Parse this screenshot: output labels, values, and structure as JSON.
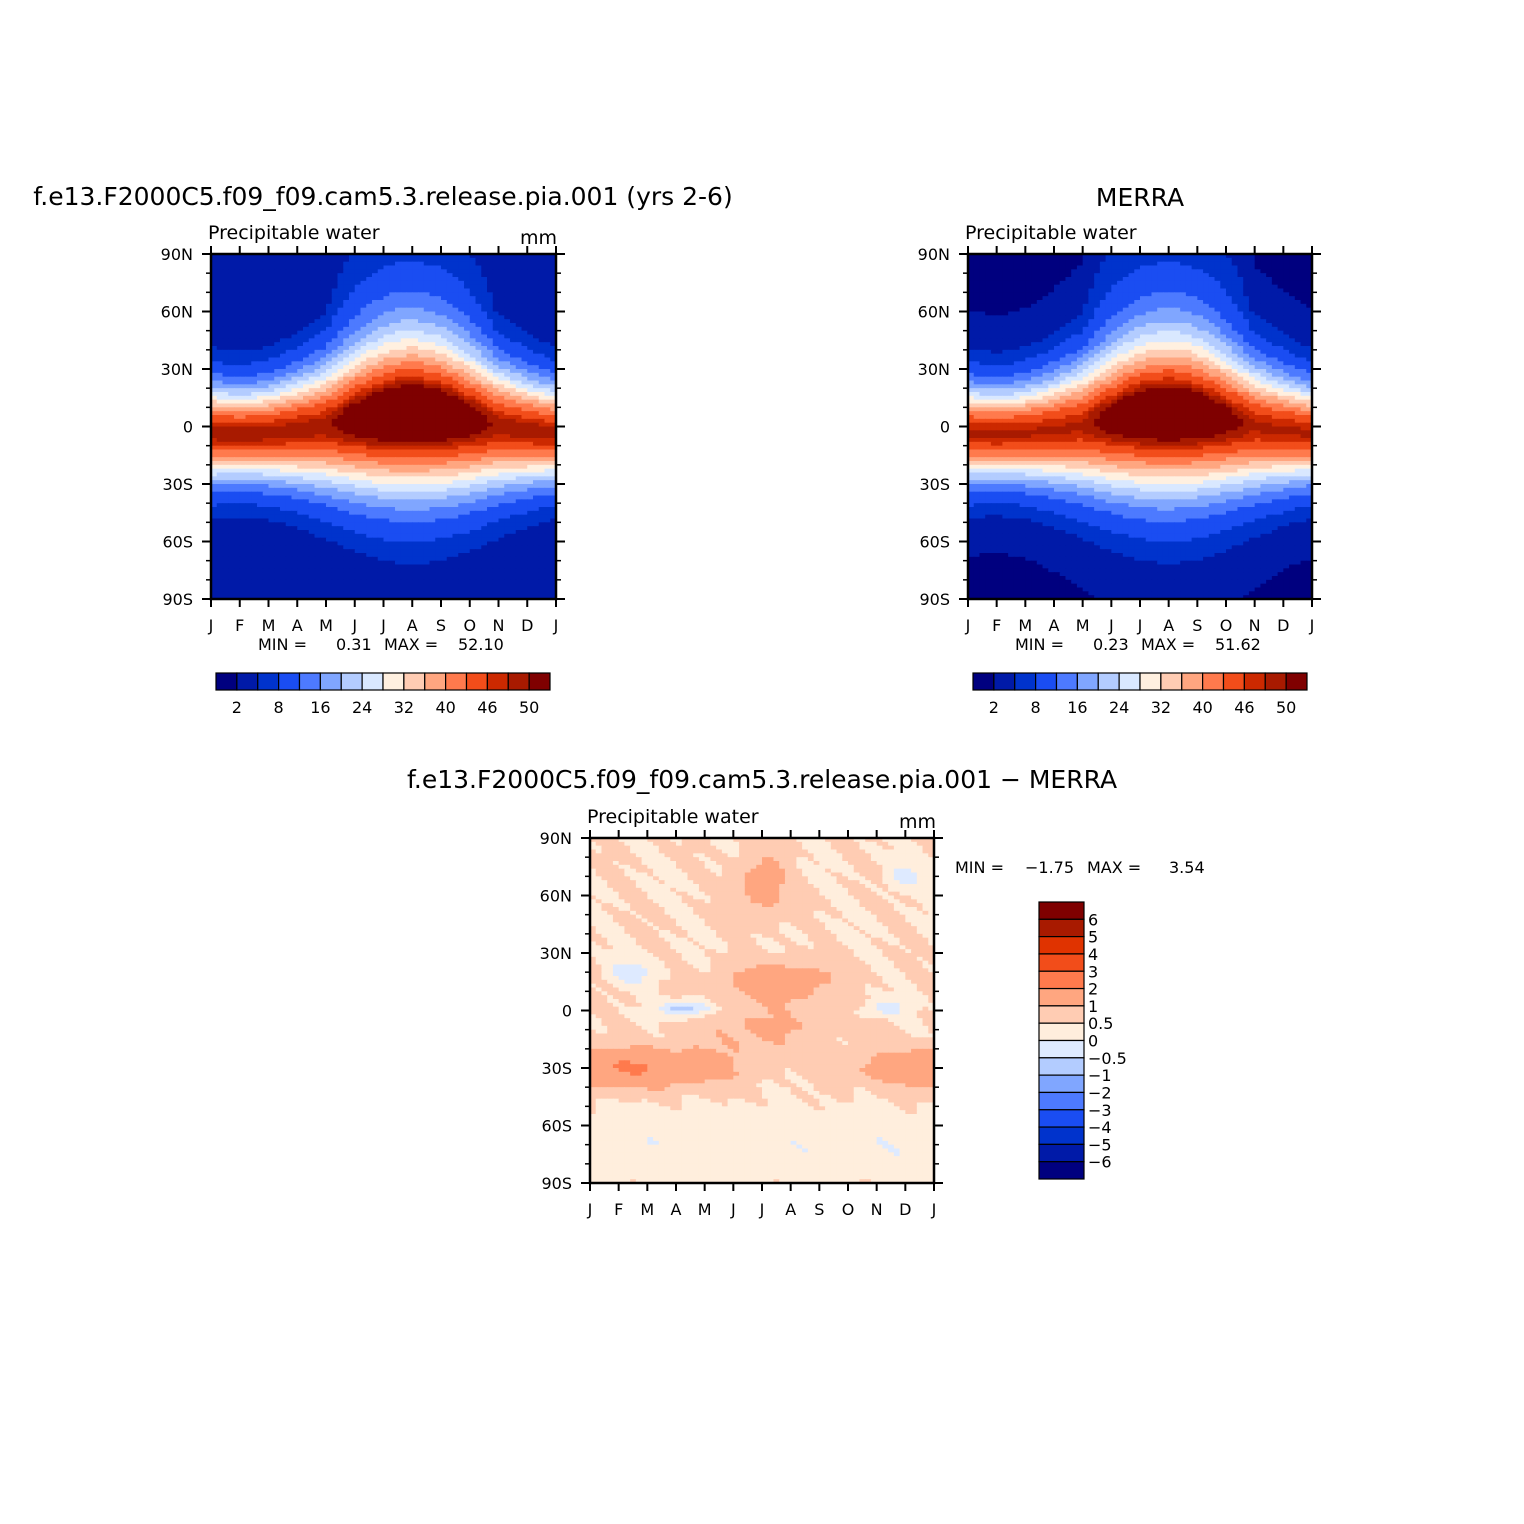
{
  "chart_data": [
    {
      "type": "heatmap",
      "title": "f.e13.F2000C5.f09_f09.cam5.3.release.pia.001 (yrs 2-6)",
      "subtitle": "Precipitable water",
      "units": "mm",
      "x_ticks": [
        "J",
        "F",
        "M",
        "A",
        "M",
        "J",
        "J",
        "A",
        "S",
        "O",
        "N",
        "D",
        "J"
      ],
      "y_ticks": [
        "90N",
        "60N",
        "30N",
        "0",
        "30S",
        "60S",
        "90S"
      ],
      "min_label": "MIN =",
      "min_value": "0.31",
      "max_label": "MAX =",
      "max_value": "52.10",
      "colorbar_ticks": [
        "2",
        "8",
        "16",
        "24",
        "32",
        "40",
        "46",
        "50"
      ]
    },
    {
      "type": "heatmap",
      "title": "MERRA",
      "subtitle": "Precipitable water",
      "units": "",
      "x_ticks": [
        "J",
        "F",
        "M",
        "A",
        "M",
        "J",
        "J",
        "A",
        "S",
        "O",
        "N",
        "D",
        "J"
      ],
      "y_ticks": [
        "90N",
        "60N",
        "30N",
        "0",
        "30S",
        "60S",
        "90S"
      ],
      "min_label": "MIN =",
      "min_value": "0.23",
      "max_label": "MAX =",
      "max_value": "51.62",
      "colorbar_ticks": [
        "2",
        "8",
        "16",
        "24",
        "32",
        "40",
        "46",
        "50"
      ]
    },
    {
      "type": "heatmap",
      "title": "f.e13.F2000C5.f09_f09.cam5.3.release.pia.001 − MERRA",
      "subtitle": "Precipitable water",
      "units": "mm",
      "x_ticks": [
        "J",
        "F",
        "M",
        "A",
        "M",
        "J",
        "J",
        "A",
        "S",
        "O",
        "N",
        "D",
        "J"
      ],
      "y_ticks": [
        "90N",
        "60N",
        "30N",
        "0",
        "30S",
        "60S",
        "90S"
      ],
      "min_label": "MIN =",
      "min_value": "−1.75",
      "max_label": "MAX =",
      "max_value": "3.54",
      "colorbar_ticks": [
        "6",
        "5",
        "4",
        "3",
        "2",
        "1",
        "0.5",
        "0",
        "−0.5",
        "−1",
        "−2",
        "−3",
        "−4",
        "−5",
        "−6"
      ]
    }
  ],
  "colors": {
    "abs_scale": [
      "#00007f",
      "#001aa8",
      "#0033cc",
      "#1a4df2",
      "#4d7aff",
      "#80a6ff",
      "#b3ccff",
      "#d9e8ff",
      "#fff0e0",
      "#ffccb3",
      "#ffa680",
      "#ff7a4d",
      "#f24d1a",
      "#cc2900",
      "#a81a00",
      "#7f0000"
    ],
    "diff_scale": [
      "#7f0000",
      "#a81a00",
      "#e03300",
      "#f24d1a",
      "#ff7a4d",
      "#ffa680",
      "#ffccb3",
      "#ffeedd",
      "#deeaff",
      "#b3ccff",
      "#80a6ff",
      "#4d7aff",
      "#1a4df2",
      "#0033cc",
      "#001aa8",
      "#00007f"
    ]
  }
}
